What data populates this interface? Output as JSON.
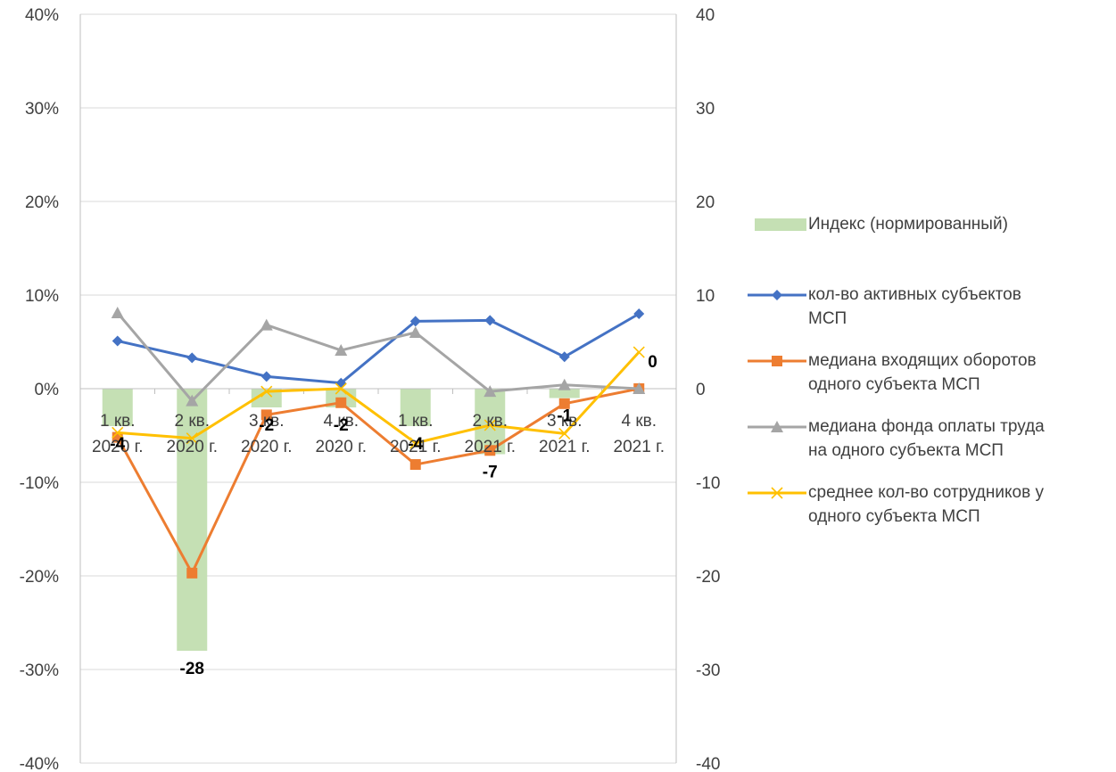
{
  "chart_data": {
    "type": "bar+line",
    "categories": [
      [
        "1 кв.",
        "2020 г."
      ],
      [
        "2 кв.",
        "2020 г."
      ],
      [
        "3 кв.",
        "2020 г."
      ],
      [
        "4 кв.",
        "2020 г."
      ],
      [
        "1 кв.",
        "2021 г."
      ],
      [
        "2 кв.",
        "2021 г."
      ],
      [
        "3 кв.",
        "2021 г."
      ],
      [
        "4 кв.",
        "2021 г."
      ]
    ],
    "left_axis": {
      "min": -0.4,
      "max": 0.4,
      "step": 0.1,
      "tick_labels": [
        "-40%",
        "-30%",
        "-20%",
        "-10%",
        "0%",
        "10%",
        "20%",
        "30%",
        "40%"
      ]
    },
    "right_axis": {
      "min": -40,
      "max": 40,
      "step": 10,
      "tick_labels": [
        "-40",
        "-30",
        "-20",
        "-10",
        "0",
        "10",
        "20",
        "30",
        "40"
      ]
    },
    "gridlines": true,
    "legend_position": "right",
    "bar_series": {
      "name": "Индекс (нормированный)",
      "axis": "right",
      "color": "#c5e0b4",
      "values": [
        -4,
        -28,
        -2,
        -2,
        -4,
        -7,
        -1,
        0
      ],
      "data_labels": [
        "-4",
        "-28",
        "-2",
        "-2",
        "-4",
        "-7",
        "-1",
        "0"
      ]
    },
    "line_series": [
      {
        "name": "кол-во активных субъектов МСП",
        "name_lines": [
          "кол-во активных субъектов",
          "МСП"
        ],
        "color": "#4472c4",
        "marker": "diamond",
        "values": [
          0.051,
          0.033,
          0.013,
          0.006,
          0.072,
          0.073,
          0.034,
          0.08
        ]
      },
      {
        "name": "медиана входящих оборотов одного субъекта МСП",
        "name_lines": [
          "медиана входящих оборотов",
          "одного субъекта МСП"
        ],
        "color": "#ed7d31",
        "marker": "square",
        "values": [
          -0.052,
          -0.197,
          -0.028,
          -0.015,
          -0.081,
          -0.066,
          -0.016,
          0.0
        ]
      },
      {
        "name": "медиана фонда оплаты труда на одного субъекта МСП",
        "name_lines": [
          "медиана фонда оплаты труда",
          "на одного субъекта МСП"
        ],
        "color": "#a5a5a5",
        "marker": "triangle",
        "values": [
          0.081,
          -0.013,
          0.068,
          0.041,
          0.06,
          -0.003,
          0.004,
          0.0
        ]
      },
      {
        "name": "среднее кол-во сотрудников у одного субъекта МСП",
        "name_lines": [
          "среднее кол-во сотрудников у",
          "одного субъекта МСП"
        ],
        "color": "#ffc000",
        "marker": "x",
        "values": [
          -0.047,
          -0.053,
          -0.003,
          0.0,
          -0.058,
          -0.039,
          -0.048,
          0.039
        ]
      }
    ]
  }
}
